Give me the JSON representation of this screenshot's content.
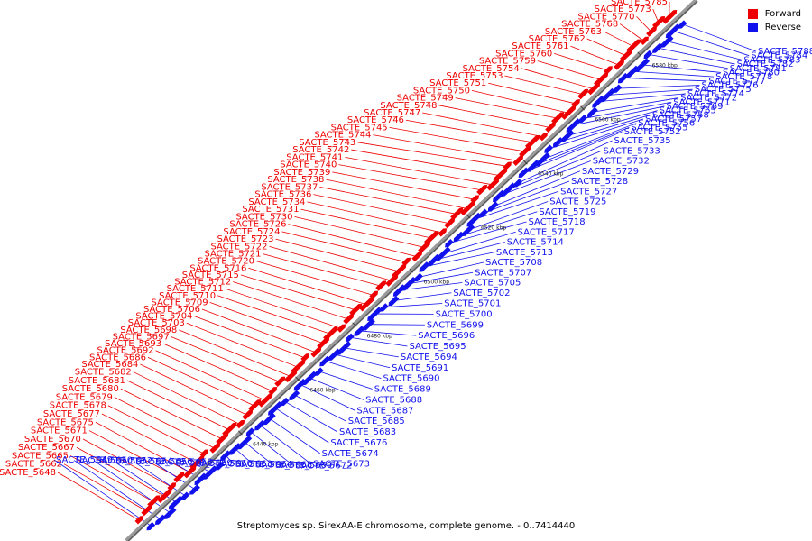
{
  "caption": "Streptomyces sp. SirexAA-E chromosome, complete genome. - 0..7414440",
  "colors": {
    "forward": "#ee0000",
    "reverse": "#1111ee",
    "backbone": "#9a9a9a"
  },
  "legend": [
    {
      "label": "Forward",
      "color": "#ee0000"
    },
    {
      "label": "Reverse",
      "color": "#1111ee"
    }
  ],
  "scale_labels": [
    "6440 kbp",
    "6460 kbp",
    "6480 kbp",
    "6500 kbp",
    "6520 kbp",
    "6540 kbp",
    "6560 kbp",
    "6580 kbp"
  ],
  "forward_genes": [
    "SACTE_5648",
    "SACTE_5662",
    "SACTE_5665",
    "SACTE_5667",
    "SACTE_5670",
    "SACTE_5671",
    "SACTE_5675",
    "SACTE_5677",
    "SACTE_5678",
    "SACTE_5679",
    "SACTE_5680",
    "SACTE_5681",
    "SACTE_5682",
    "SACTE_5684",
    "SACTE_5686",
    "SACTE_5692",
    "SACTE_5693",
    "SACTE_5697",
    "SACTE_5698",
    "SACTE_5703",
    "SACTE_5704",
    "SACTE_5706",
    "SACTE_5709",
    "SACTE_5710",
    "SACTE_5711",
    "SACTE_5712",
    "SACTE_5715",
    "SACTE_5716",
    "SACTE_5720",
    "SACTE_5721",
    "SACTE_5722",
    "SACTE_5723",
    "SACTE_5724",
    "SACTE_5726",
    "SACTE_5730",
    "SACTE_5731",
    "SACTE_5734",
    "SACTE_5736",
    "SACTE_5737",
    "SACTE_5738",
    "SACTE_5739",
    "SACTE_5740",
    "SACTE_5741",
    "SACTE_5742",
    "SACTE_5743",
    "SACTE_5744",
    "SACTE_5745",
    "SACTE_5746",
    "SACTE_5747",
    "SACTE_5748",
    "SACTE_5749",
    "SACTE_5750",
    "SACTE_5751",
    "SACTE_5753",
    "SACTE_5754",
    "SACTE_5759",
    "SACTE_5760",
    "SACTE_5761",
    "SACTE_5762",
    "SACTE_5763",
    "SACTE_5768",
    "SACTE_5770",
    "SACTE_5773",
    "SACTE_5785"
  ],
  "reverse_genes": [
    "SACTE_5649",
    "SACTE_5650",
    "SACTE_5652",
    "SACTE_5654",
    "SACTE_5656",
    "SACTE_5658",
    "SACTE_5659",
    "SACTE_5660",
    "SACTE_5663",
    "SACTE_5664",
    "SACTE_5668",
    "SACTE_5669",
    "SACTE_5672",
    "SACTE_5673",
    "SACTE_5674",
    "SACTE_5676",
    "SACTE_5683",
    "SACTE_5685",
    "SACTE_5687",
    "SACTE_5688",
    "SACTE_5689",
    "SACTE_5690",
    "SACTE_5691",
    "SACTE_5694",
    "SACTE_5695",
    "SACTE_5696",
    "SACTE_5699",
    "SACTE_5700",
    "SACTE_5701",
    "SACTE_5702",
    "SACTE_5705",
    "SACTE_5707",
    "SACTE_5708",
    "SACTE_5713",
    "SACTE_5714",
    "SACTE_5717",
    "SACTE_5718",
    "SACTE_5719",
    "SACTE_5725",
    "SACTE_5727",
    "SACTE_5728",
    "SACTE_5729",
    "SACTE_5732",
    "SACTE_5733",
    "SACTE_5735",
    "SACTE_5752",
    "SACTE_5755",
    "SACTE_5756",
    "SACTE_5757",
    "SACTE_5758",
    "SACTE_5765",
    "SACTE_5769",
    "SACTE_5771",
    "SACTE_5772",
    "SACTE_5774",
    "SACTE_5775",
    "SACTE_5776",
    "SACTE_5777",
    "SACTE_5778",
    "SACTE_5780",
    "SACTE_5781",
    "SACTE_5782",
    "SACTE_5783",
    "SACTE_5784",
    "SACTE_5788"
  ]
}
